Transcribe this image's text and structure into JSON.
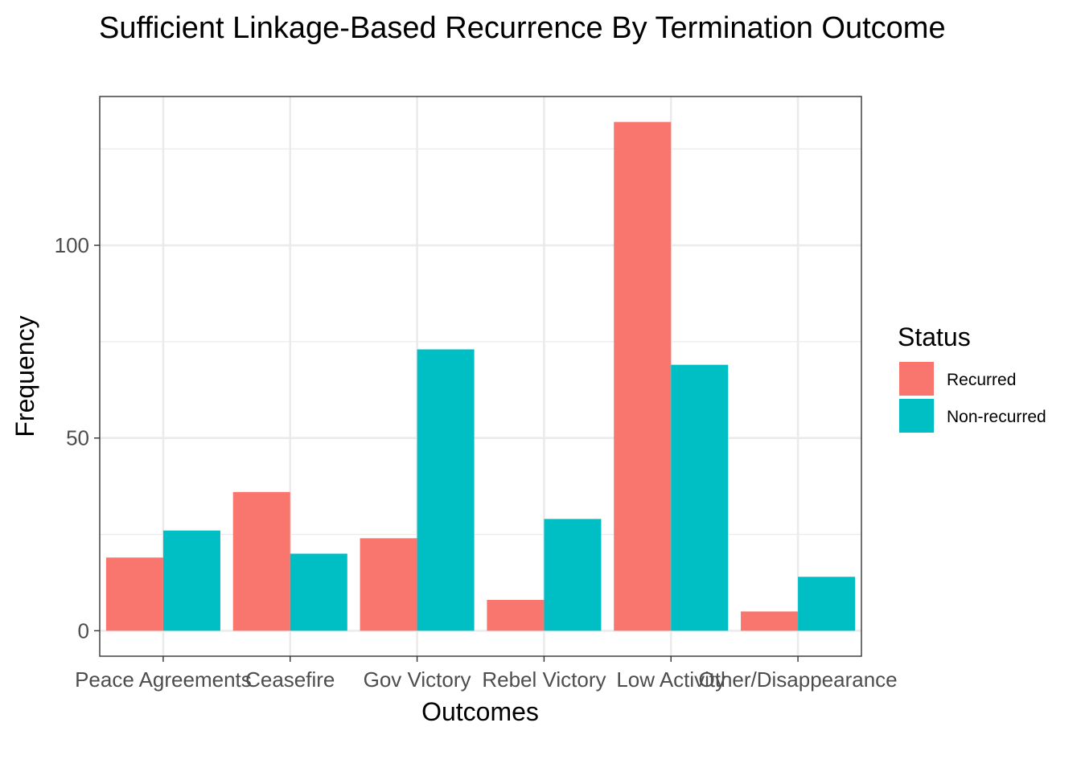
{
  "chart_data": {
    "type": "bar",
    "title": "Sufficient Linkage-Based Recurrence By Termination Outcome",
    "xlabel": "Outcomes",
    "ylabel": "Frequency",
    "categories": [
      "Peace Agreements",
      "Ceasefire",
      "Gov Victory",
      "Rebel Victory",
      "Low Activity",
      "Other/Disappearance"
    ],
    "series": [
      {
        "name": "Recurred",
        "color": "#F8766D",
        "values": [
          19,
          36,
          24,
          8,
          132,
          5
        ]
      },
      {
        "name": "Non-recurred",
        "color": "#00BFC4",
        "values": [
          26,
          20,
          73,
          29,
          69,
          14
        ]
      }
    ],
    "ylim": [
      -6.6,
      138.6
    ],
    "yticks": [
      0,
      50,
      100
    ],
    "grid": true,
    "legend": {
      "title": "Status",
      "position": "right"
    }
  }
}
